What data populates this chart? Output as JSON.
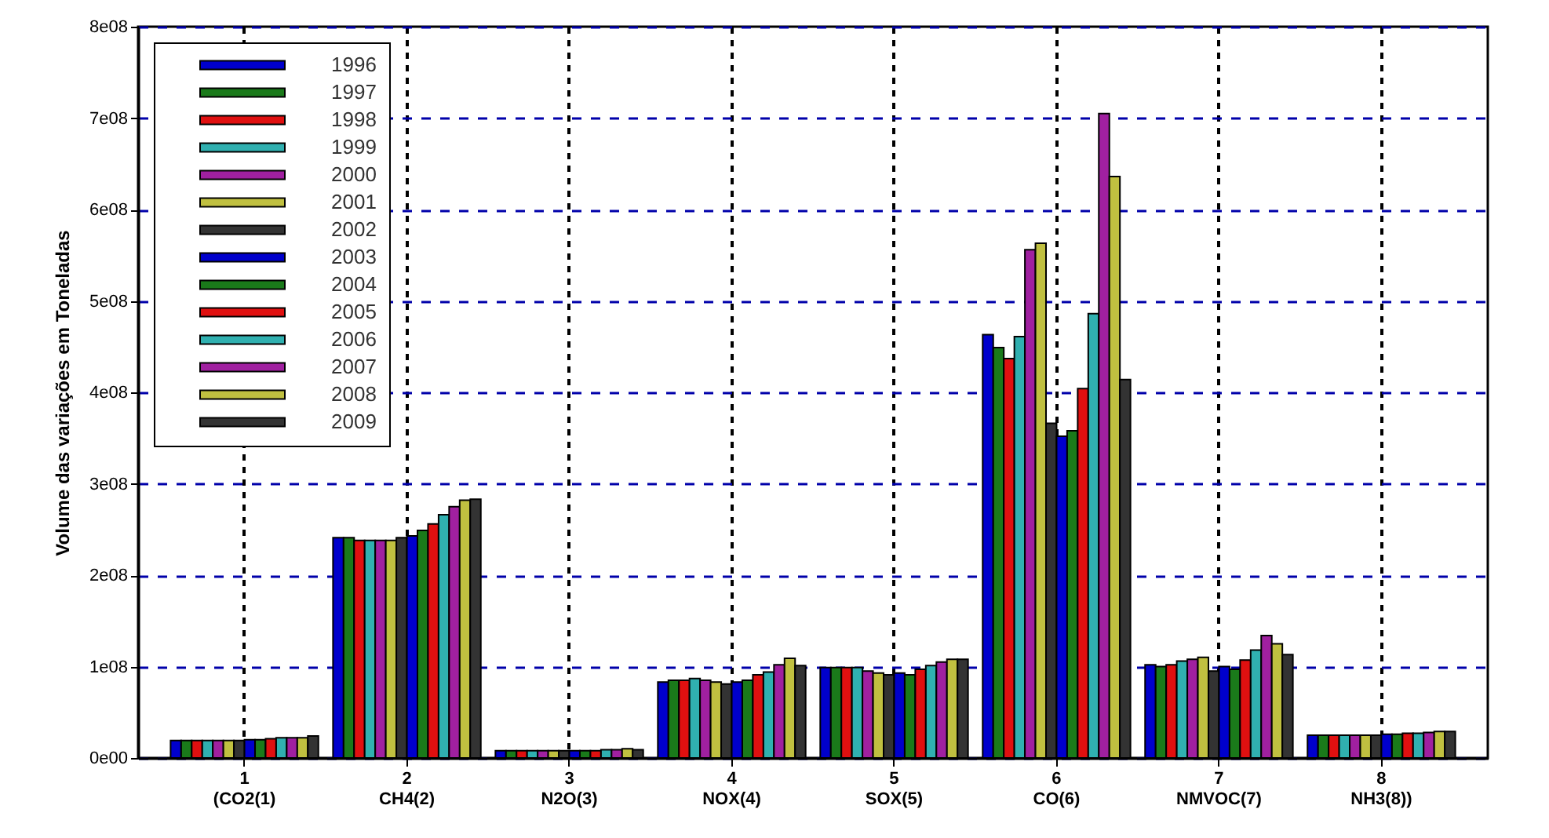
{
  "chart_data": {
    "type": "bar",
    "ylabel": "Volume das variações em Toneladas",
    "categories": [
      "1\n(CO2(1)",
      "2\nCH4(2)",
      "3\nN2O(3)",
      "4\nNOX(4)",
      "5\nSOX(5)",
      "6\nCO(6)",
      "7\nNMVOC(7)",
      "8\nNH3(8))"
    ],
    "series": [
      {
        "name": "1996",
        "color": "#0000cc",
        "values": [
          19000000.0,
          241000000.0,
          8000000.0,
          83000000.0,
          99000000.0,
          463000000.0,
          102000000.0,
          25000000.0
        ]
      },
      {
        "name": "1997",
        "color": "#1a7a1a",
        "values": [
          19000000.0,
          241000000.0,
          8000000.0,
          85000000.0,
          99000000.0,
          449000000.0,
          100000000.0,
          25000000.0
        ]
      },
      {
        "name": "1998",
        "color": "#e01010",
        "values": [
          19000000.0,
          238000000.0,
          8000000.0,
          85000000.0,
          99000000.0,
          437000000.0,
          102000000.0,
          25000000.0
        ]
      },
      {
        "name": "1999",
        "color": "#30b0b0",
        "values": [
          19000000.0,
          238000000.0,
          8000000.0,
          87000000.0,
          99000000.0,
          461000000.0,
          106000000.0,
          25000000.0
        ]
      },
      {
        "name": "2000",
        "color": "#a020a0",
        "values": [
          19000000.0,
          238000000.0,
          8000000.0,
          85000000.0,
          95000000.0,
          556000000.0,
          108000000.0,
          25000000.0
        ]
      },
      {
        "name": "2001",
        "color": "#c0c040",
        "values": [
          19000000.0,
          238000000.0,
          8000000.0,
          83000000.0,
          93000000.0,
          563000000.0,
          110000000.0,
          25000000.0
        ]
      },
      {
        "name": "2002",
        "color": "#333333",
        "values": [
          19000000.0,
          241000000.0,
          8000000.0,
          81000000.0,
          91000000.0,
          366000000.0,
          95000000.0,
          25000000.0
        ]
      },
      {
        "name": "2003",
        "color": "#0000cc",
        "values": [
          20000000.0,
          243000000.0,
          8000000.0,
          83000000.0,
          93000000.0,
          352000000.0,
          100000000.0,
          26000000.0
        ]
      },
      {
        "name": "2004",
        "color": "#1a7a1a",
        "values": [
          20000000.0,
          249000000.0,
          8000000.0,
          85000000.0,
          91000000.0,
          358000000.0,
          97000000.0,
          26000000.0
        ]
      },
      {
        "name": "2005",
        "color": "#e01010",
        "values": [
          21000000.0,
          256000000.0,
          8000000.0,
          91000000.0,
          97000000.0,
          404000000.0,
          107000000.0,
          27000000.0
        ]
      },
      {
        "name": "2006",
        "color": "#30b0b0",
        "values": [
          22000000.0,
          266000000.0,
          9000000.0,
          94000000.0,
          101000000.0,
          486000000.0,
          118000000.0,
          27000000.0
        ]
      },
      {
        "name": "2007",
        "color": "#a020a0",
        "values": [
          22000000.0,
          275000000.0,
          9000000.0,
          102000000.0,
          105000000.0,
          705000000.0,
          134000000.0,
          28000000.0
        ]
      },
      {
        "name": "2008",
        "color": "#c0c040",
        "values": [
          22000000.0,
          282000000.0,
          10000000.0,
          109000000.0,
          108000000.0,
          636000000.0,
          125000000.0,
          29000000.0
        ]
      },
      {
        "name": "2009",
        "color": "#333333",
        "values": [
          24000000.0,
          283000000.0,
          9000000.0,
          101000000.0,
          108000000.0,
          414000000.0,
          113000000.0,
          29000000.0
        ]
      }
    ],
    "ylim": [
      0,
      800000000.0
    ],
    "yticks": [
      {
        "value": 0,
        "label": "0e00"
      },
      {
        "value": 100000000.0,
        "label": "1e08"
      },
      {
        "value": 200000000.0,
        "label": "2e08"
      },
      {
        "value": 300000000.0,
        "label": "3e08"
      },
      {
        "value": 400000000.0,
        "label": "4e08"
      },
      {
        "value": 500000000.0,
        "label": "5e08"
      },
      {
        "value": 600000000.0,
        "label": "6e08"
      },
      {
        "value": 700000000.0,
        "label": "7e08"
      },
      {
        "value": 800000000.0,
        "label": "8e08"
      }
    ],
    "grid": true,
    "legend": "top left"
  }
}
